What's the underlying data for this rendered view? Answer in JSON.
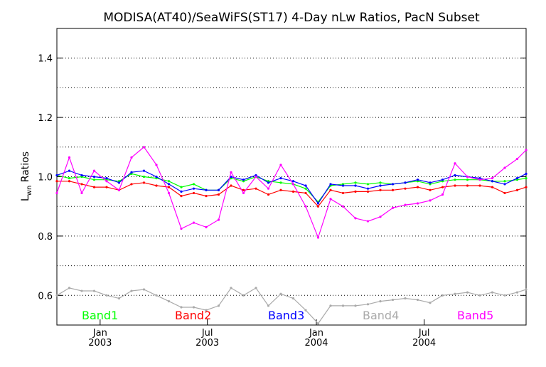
{
  "chart_data": {
    "type": "line",
    "title": "MODISA(AT40)/SeaWiFS(ST17) 4-Day nLw Ratios, PacN Subset",
    "ylabel": "L",
    "ylabel_subscript": "wn",
    "ylabel_suffix": " Ratios",
    "ylim": [
      0.5,
      1.5
    ],
    "xlim": [
      "2002-10-20",
      "2004-12-20"
    ],
    "y_ticks": [
      {
        "value": 0.6,
        "label": "0.6"
      },
      {
        "value": 0.8,
        "label": "0.8"
      },
      {
        "value": 1.0,
        "label": "1.0"
      },
      {
        "value": 1.2,
        "label": "1.2"
      },
      {
        "value": 1.4,
        "label": "1.4"
      }
    ],
    "y_gridlines": [
      0.6,
      0.7,
      0.8,
      0.9,
      1.0,
      1.1,
      1.2,
      1.3,
      1.4
    ],
    "x_ticks": [
      {
        "date": "2003-01-01",
        "label": "Jan",
        "year": "2003"
      },
      {
        "date": "2003-07-01",
        "label": "Jul",
        "year": "2003"
      },
      {
        "date": "2004-01-01",
        "label": "Jan",
        "year": "2004"
      },
      {
        "date": "2004-07-01",
        "label": "Jul",
        "year": "2004"
      }
    ],
    "grid": "horizontal dotted",
    "legend_position": "bottom inside plot",
    "x": [
      "2002-10-20",
      "2002-11-10",
      "2002-12-01",
      "2002-12-22",
      "2003-01-12",
      "2003-02-02",
      "2003-02-23",
      "2003-03-16",
      "2003-04-06",
      "2003-04-27",
      "2003-05-18",
      "2003-06-08",
      "2003-06-29",
      "2003-07-20",
      "2003-08-10",
      "2003-08-31",
      "2003-09-21",
      "2003-10-12",
      "2003-11-02",
      "2003-11-23",
      "2003-12-14",
      "2004-01-04",
      "2004-01-25",
      "2004-02-15",
      "2004-03-07",
      "2004-03-28",
      "2004-04-18",
      "2004-05-09",
      "2004-05-30",
      "2004-06-20",
      "2004-07-11",
      "2004-08-01",
      "2004-08-22",
      "2004-09-12",
      "2004-10-03",
      "2004-10-24",
      "2004-11-14",
      "2004-12-05",
      "2004-12-20"
    ],
    "series": [
      {
        "name": "Band1",
        "color": "#00ff00",
        "values": [
          1.005,
          0.995,
          1.0,
          0.99,
          0.99,
          0.985,
          1.01,
          1.0,
          0.995,
          0.985,
          0.965,
          0.975,
          0.955,
          0.955,
          0.995,
          0.985,
          1.0,
          0.985,
          0.98,
          0.975,
          0.96,
          0.915,
          0.97,
          0.975,
          0.98,
          0.975,
          0.98,
          0.975,
          0.98,
          0.985,
          0.975,
          0.985,
          0.99,
          0.99,
          0.99,
          0.985,
          0.985,
          0.99,
          0.995
        ]
      },
      {
        "name": "Band2",
        "color": "#ff0000",
        "values": [
          0.985,
          0.985,
          0.975,
          0.965,
          0.965,
          0.955,
          0.975,
          0.98,
          0.97,
          0.965,
          0.935,
          0.945,
          0.935,
          0.94,
          0.97,
          0.955,
          0.96,
          0.94,
          0.955,
          0.95,
          0.945,
          0.9,
          0.955,
          0.945,
          0.95,
          0.95,
          0.955,
          0.955,
          0.96,
          0.965,
          0.955,
          0.965,
          0.97,
          0.97,
          0.97,
          0.965,
          0.945,
          0.955,
          0.965
        ]
      },
      {
        "name": "Band3",
        "color": "#0000ff",
        "values": [
          1.005,
          1.02,
          1.005,
          1.0,
          0.995,
          0.98,
          1.015,
          1.02,
          1.0,
          0.975,
          0.95,
          0.96,
          0.955,
          0.955,
          1.0,
          0.99,
          1.005,
          0.98,
          0.995,
          0.985,
          0.97,
          0.91,
          0.975,
          0.97,
          0.97,
          0.96,
          0.97,
          0.975,
          0.98,
          0.99,
          0.98,
          0.99,
          1.005,
          1.0,
          0.995,
          0.985,
          0.975,
          0.995,
          1.01
        ]
      },
      {
        "name": "Band4",
        "color": "#aaaaaa",
        "values": [
          0.6,
          0.625,
          0.615,
          0.615,
          0.6,
          0.59,
          0.615,
          0.62,
          0.6,
          0.58,
          0.56,
          0.56,
          0.55,
          0.565,
          0.625,
          0.6,
          0.625,
          0.565,
          0.605,
          0.59,
          0.55,
          0.505,
          0.565,
          0.565,
          0.565,
          0.57,
          0.58,
          0.585,
          0.59,
          0.585,
          0.575,
          0.6,
          0.605,
          0.61,
          0.6,
          0.61,
          0.6,
          0.61,
          0.62
        ]
      },
      {
        "name": "Band5",
        "color": "#ff00ff",
        "values": [
          0.945,
          1.065,
          0.945,
          1.02,
          0.985,
          0.955,
          1.065,
          1.1,
          1.04,
          0.945,
          0.825,
          0.845,
          0.83,
          0.855,
          1.015,
          0.945,
          1.0,
          0.96,
          1.04,
          0.975,
          0.9,
          0.795,
          0.925,
          0.9,
          0.86,
          0.85,
          0.865,
          0.895,
          0.905,
          0.91,
          0.92,
          0.94,
          1.045,
          1.0,
          0.99,
          0.995,
          1.03,
          1.06,
          1.09
        ]
      }
    ]
  }
}
